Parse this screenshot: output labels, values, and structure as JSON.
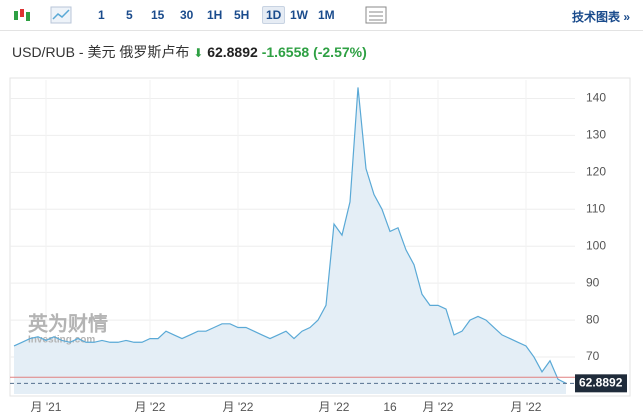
{
  "toolbar": {
    "intervals": [
      "1",
      "5",
      "15",
      "30",
      "1H",
      "5H",
      "1D",
      "1W",
      "1M"
    ],
    "selected": 6,
    "link": "技术图表 »"
  },
  "header": {
    "title": "USD/RUB - 美元 俄罗斯卢布",
    "price": "62.8892",
    "change": "-1.6558",
    "change_pct": "(-2.57%)"
  },
  "watermark": {
    "brand": "英为财情",
    "site": "Investing.com"
  },
  "chart_data": {
    "type": "area",
    "categories": [
      null,
      null,
      null,
      null,
      "月 '21",
      null,
      null,
      null,
      null,
      null,
      null,
      null,
      null,
      null,
      null,
      null,
      null,
      "月 '22",
      null,
      null,
      null,
      null,
      null,
      null,
      null,
      null,
      null,
      null,
      "月 '22",
      null,
      null,
      null,
      null,
      null,
      null,
      null,
      null,
      null,
      null,
      null,
      "月 '22",
      null,
      null,
      null,
      null,
      null,
      null,
      "16",
      null,
      null,
      null,
      null,
      null,
      "月 '22",
      null,
      null,
      null,
      null,
      null,
      null,
      null,
      null,
      null,
      null,
      "月 '22",
      null,
      null,
      null,
      null,
      null
    ],
    "values": [
      73,
      74,
      75,
      75.5,
      74.5,
      75.5,
      74.5,
      74,
      75,
      74,
      74,
      74.5,
      74,
      74,
      74.5,
      74,
      74,
      75,
      75,
      77,
      76,
      75,
      76,
      77,
      77,
      78,
      79,
      79,
      78,
      78,
      77,
      76,
      75,
      76,
      77,
      75,
      77,
      78,
      80,
      84,
      106,
      103,
      112,
      143,
      121,
      114,
      110,
      104,
      105,
      99,
      95,
      87,
      84,
      84,
      83,
      76,
      77,
      80,
      81,
      80,
      78,
      76,
      75,
      74,
      73,
      70,
      66,
      69,
      64,
      62.8892
    ],
    "color": "#5aa9d6",
    "fill": "#e4eef6",
    "ylim": [
      60,
      145
    ],
    "yticks": [
      70,
      80,
      90,
      100,
      110,
      120,
      130,
      140
    ],
    "grid": true,
    "prev_close": 64.545,
    "prev_close_color": "#e08080"
  }
}
